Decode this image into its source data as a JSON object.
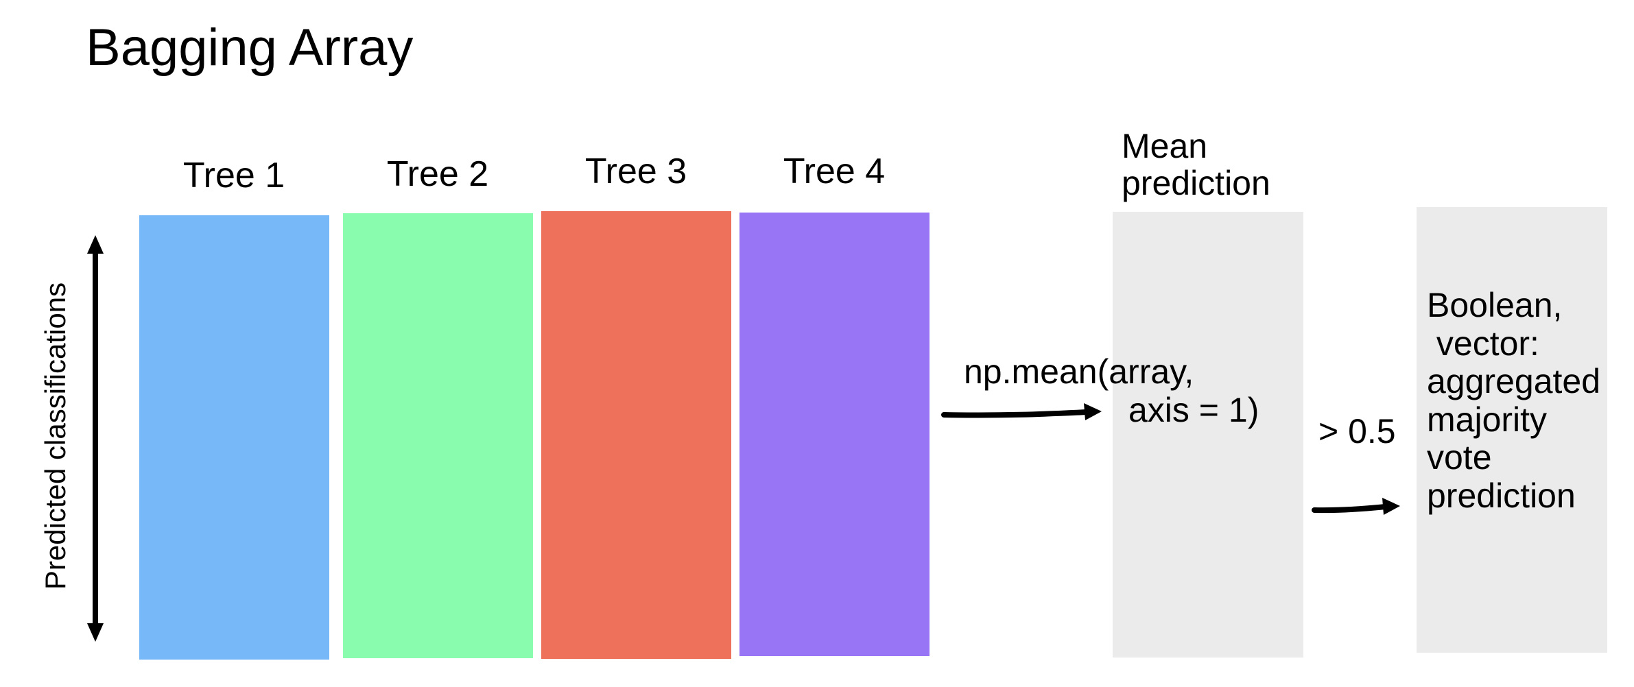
{
  "title": "Bagging Array",
  "y_axis_label": "Predicted classifications",
  "trees": [
    {
      "label": "Tree 1",
      "color": "#77b8f8"
    },
    {
      "label": "Tree 2",
      "color": "#8afcad"
    },
    {
      "label": "Tree 3",
      "color": "#ee725b"
    },
    {
      "label": "Tree 4",
      "color": "#9775f5"
    }
  ],
  "mean_box": {
    "label_lines": [
      "Mean",
      "prediction"
    ],
    "color": "#ebebeb"
  },
  "operation": {
    "line1": "np.mean(array,",
    "line2": "axis = 1)"
  },
  "threshold": "> 0.5",
  "result_box": {
    "lines": [
      "Boolean,",
      " vector:",
      "aggregated",
      "majority",
      "vote",
      "prediction"
    ],
    "color": "#ebebeb"
  }
}
